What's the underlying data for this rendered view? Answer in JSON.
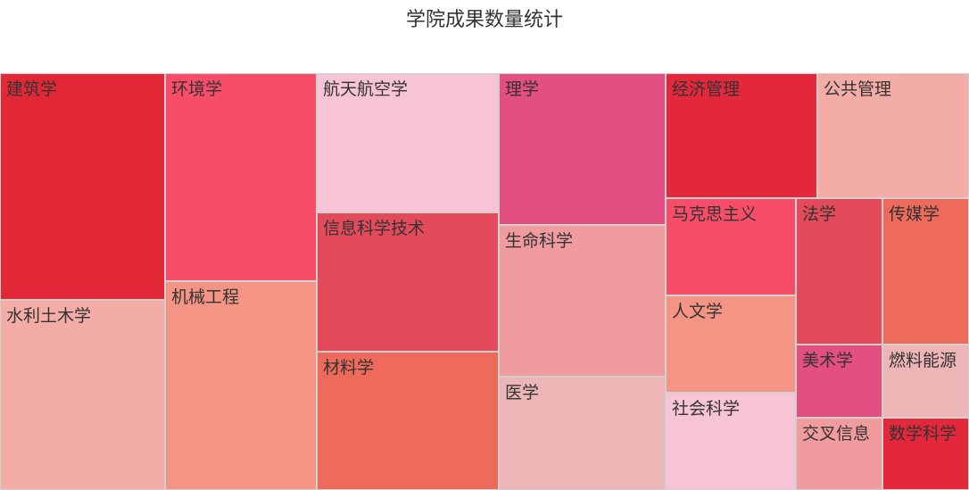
{
  "chart_data": {
    "type": "treemap",
    "title": "学院成果数量统计",
    "items": [
      {
        "name": "建筑学",
        "color": "#e22837"
      },
      {
        "name": "水利土木学",
        "color": "#f4aca7"
      },
      {
        "name": "环境学",
        "color": "#f84d68"
      },
      {
        "name": "机械工程",
        "color": "#f49484"
      },
      {
        "name": "航天航空学",
        "color": "#f7c3d6"
      },
      {
        "name": "信息科学技术",
        "color": "#e34b5a"
      },
      {
        "name": "材料学",
        "color": "#ee6b5c"
      },
      {
        "name": "理学",
        "color": "#e34f80"
      },
      {
        "name": "生命科学",
        "color": "#f09b9d"
      },
      {
        "name": "医学",
        "color": "#edb5b5"
      },
      {
        "name": "经济管理",
        "color": "#e2283a"
      },
      {
        "name": "公共管理",
        "color": "#f4aca7"
      },
      {
        "name": "马克思主义",
        "color": "#f84d69"
      },
      {
        "name": "人文学",
        "color": "#f49484"
      },
      {
        "name": "社会科学",
        "color": "#f7c3d6"
      },
      {
        "name": "法学",
        "color": "#e34b5a"
      },
      {
        "name": "传媒学",
        "color": "#ee6b5c"
      },
      {
        "name": "美术学",
        "color": "#e34f80"
      },
      {
        "name": "燃料能源",
        "color": "#edb5b5"
      },
      {
        "name": "交叉信息",
        "color": "#f09b9d"
      },
      {
        "name": "数学科学",
        "color": "#e2283a"
      }
    ]
  }
}
